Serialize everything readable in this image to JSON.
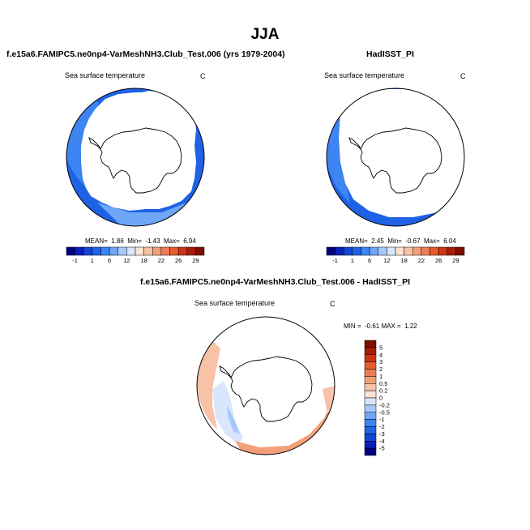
{
  "figure": {
    "title": "JJA",
    "units_label": "C",
    "field_label": "Sea surface temperature"
  },
  "panels": {
    "test": {
      "title": "f.e15a6.FAMIPC5.ne0np4-VarMeshNH3.Club_Test.006 (yrs 1979-2004)",
      "field_label": "Sea surface temperature",
      "units": "C",
      "stats": {
        "mean_label": "MEAN=",
        "mean": "1.86",
        "min_label": "Min=",
        "min": "-1.43",
        "max_label": "Max=",
        "max": "6.94"
      }
    },
    "obs": {
      "title": "HadISST_PI",
      "field_label": "Sea surface temperature",
      "units": "C",
      "stats": {
        "mean_label": "MEAN=",
        "mean": "2.45",
        "min_label": "Min=",
        "min": "-0.67",
        "max_label": "Max=",
        "max": "6.04"
      }
    },
    "diff": {
      "title": "f.e15a6.FAMIPC5.ne0np4-VarMeshNH3.Club_Test.006 - HadISST_PI",
      "field_label": "Sea surface temperature",
      "units": "C",
      "stats": {
        "min_label": "MIN =",
        "min": "-0.61",
        "max_label": "MAX =",
        "max": "1.22"
      }
    }
  },
  "colorbars": {
    "sst": {
      "labels": [
        "-1",
        "1",
        "6",
        "12",
        "18",
        "22",
        "26",
        "29"
      ],
      "colors": [
        "#00007f",
        "#0a1fb8",
        "#1446d6",
        "#1f62e6",
        "#3e84f2",
        "#6ea6f8",
        "#a6c8fb",
        "#d9e6fb",
        "#fde2d2",
        "#f8c2a6",
        "#f3a07a",
        "#ef7c54",
        "#e85a30",
        "#cf3413",
        "#a81c08",
        "#7d0f00"
      ]
    },
    "diff": {
      "labels": [
        "5",
        "4",
        "3",
        "2",
        "1",
        "0.5",
        "0.2",
        "0",
        "-0.2",
        "-0.5",
        "-1",
        "-2",
        "-3",
        "-4",
        "-5"
      ],
      "colors": [
        "#7d0f00",
        "#a81c08",
        "#cf3413",
        "#e85a30",
        "#ef7c54",
        "#f3a07a",
        "#f8c2a6",
        "#fde2d2",
        "#d9e6fb",
        "#a6c8fb",
        "#6ea6f8",
        "#3e84f2",
        "#1f62e6",
        "#1446d6",
        "#0a1fb8",
        "#00007f"
      ]
    }
  }
}
